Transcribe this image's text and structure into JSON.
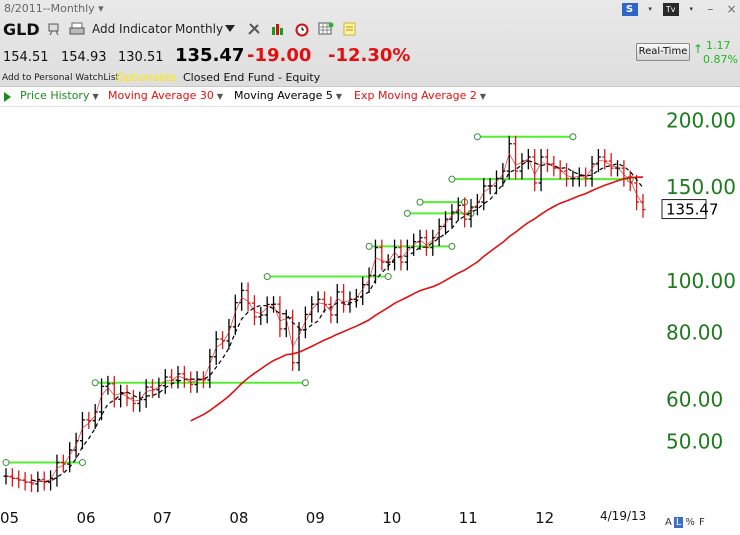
{
  "header": {
    "date_range": "8/2011--Monthly ▾",
    "ticker": "GLD",
    "add_indicator": "Add Indicator",
    "period": "Monthly",
    "open": "154.51",
    "high": "154.93",
    "low": "130.51",
    "last": "135.47",
    "net_change": "-19.00",
    "pct_change": "-12.30%",
    "watchlist_link": "Add to Personal WatchList",
    "optionable": "Optionable",
    "fund_type": "Closed End Fund - Equity",
    "realtime_button": "Real-Time",
    "rt_change": "1.17",
    "rt_pct": "0.87%",
    "win_s": "S",
    "win_tv": "Tv"
  },
  "legend": {
    "items": [
      "Price History",
      "Moving Average 30",
      "Moving Average 5",
      "Exp Moving Average 2"
    ],
    "colors": [
      "#1e8a1e",
      "#e01010",
      "#000000",
      "#e01010"
    ]
  },
  "chart_data": {
    "type": "ohlc",
    "scale": "log",
    "ylim": [
      40,
      205
    ],
    "y_ticks": [
      "200.00",
      "150.00",
      "100.00",
      "80.00",
      "60.00",
      "50.00"
    ],
    "y_tick_values": [
      200,
      150,
      100,
      80,
      60,
      50
    ],
    "x_ticks": [
      "05",
      "06",
      "07",
      "08",
      "09",
      "10",
      "11",
      "12",
      "4/19/13"
    ],
    "x_tick_indices": [
      0,
      12,
      24,
      36,
      48,
      60,
      72,
      84,
      100
    ],
    "x_start": "2005-01",
    "x_end": "2013-04",
    "last_price_label": "135.47",
    "close": [
      42.9,
      42.5,
      42.2,
      41.8,
      41.5,
      42.3,
      41.8,
      42.5,
      45.5,
      45.2,
      48.0,
      50.0,
      54.7,
      54.5,
      56.6,
      63.2,
      63.9,
      59.8,
      61.5,
      60.1,
      58.7,
      59.7,
      63.0,
      62.3,
      63.4,
      65.8,
      64.9,
      66.7,
      65.1,
      63.7,
      65.2,
      65.0,
      71.8,
      77.5,
      76.9,
      81.7,
      90.7,
      95.6,
      90.5,
      85.3,
      86.0,
      90.0,
      90.1,
      81.0,
      85.0,
      70.0,
      80.6,
      86.2,
      90.1,
      92.0,
      90.0,
      86.0,
      95.0,
      90.0,
      92.0,
      93.0,
      98.0,
      102.0,
      115.0,
      108.0,
      108.0,
      115.0,
      108.0,
      115.0,
      118.0,
      120.0,
      115.0,
      120.0,
      126.0,
      130.0,
      134.0,
      138.0,
      130.0,
      137.0,
      140.0,
      150.0,
      150.0,
      155.0,
      160.0,
      180.0,
      160.0,
      167.0,
      170.0,
      152.0,
      170.0,
      165.0,
      162.0,
      160.0,
      155.0,
      155.0,
      157.0,
      155.0,
      165.0,
      170.0,
      167.0,
      162.0,
      162.0,
      155.0,
      152.0,
      140.0,
      135.5
    ],
    "series": [
      {
        "name": "Moving Average 30",
        "color": "#e01010"
      },
      {
        "name": "Moving Average 5",
        "color": "#000000"
      },
      {
        "name": "Exp Moving Average 2",
        "color": "#e01010"
      }
    ],
    "trendlines": [
      {
        "from": [
          0,
          45.5
        ],
        "to": [
          12,
          45.5
        ]
      },
      {
        "from": [
          14,
          64.2
        ],
        "to": [
          47,
          64.2
        ]
      },
      {
        "from": [
          41,
          101.5
        ],
        "to": [
          60,
          101.5
        ]
      },
      {
        "from": [
          57,
          115.6
        ],
        "to": [
          70,
          115.6
        ]
      },
      {
        "from": [
          63,
          133.3
        ],
        "to": [
          73,
          133.3
        ]
      },
      {
        "from": [
          65,
          139.9
        ],
        "to": [
          72,
          139.9
        ]
      },
      {
        "from": [
          70,
          154.5
        ],
        "to": [
          98,
          154.5
        ]
      },
      {
        "from": [
          74,
          185.5
        ],
        "to": [
          89,
          185.5
        ]
      }
    ],
    "trendline_color": "#55ee33"
  }
}
